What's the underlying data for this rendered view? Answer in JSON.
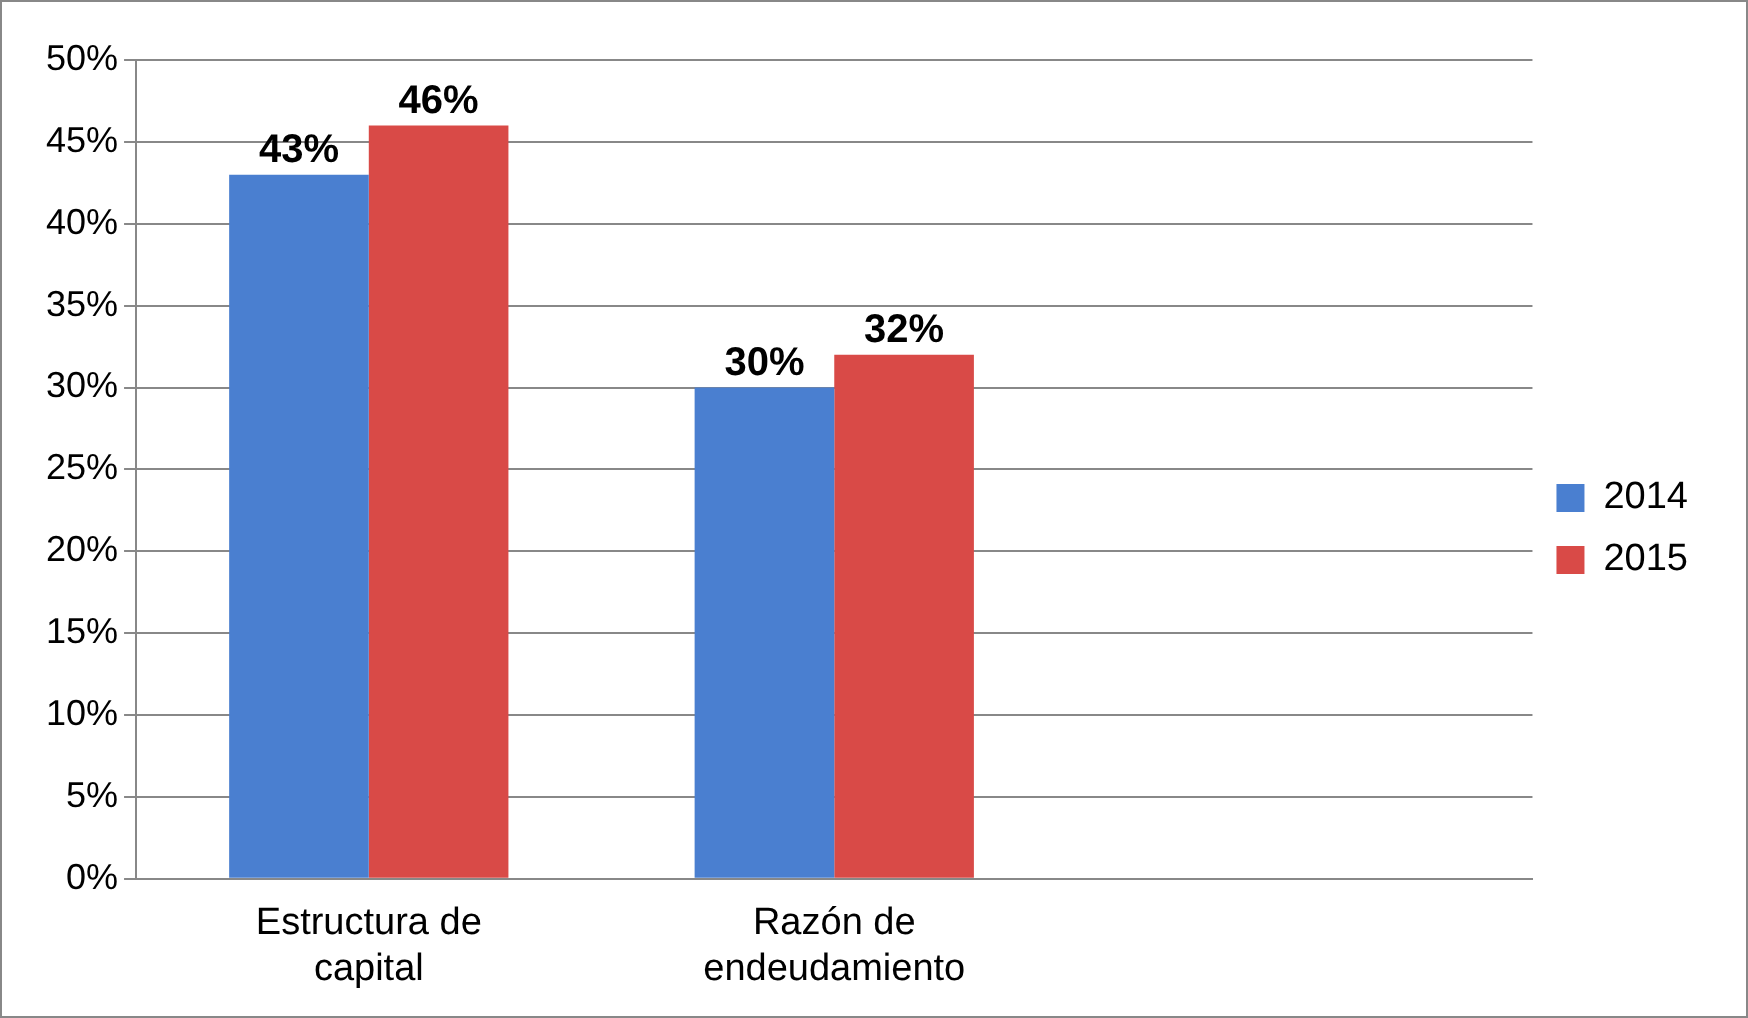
{
  "chart_data": {
    "type": "bar",
    "categories": [
      "Estructura de capital",
      "Razón de endeudamiento",
      null
    ],
    "series": [
      {
        "name": "2014",
        "color": "#4a7fd0",
        "values": [
          43,
          30,
          null
        ],
        "value_labels": [
          "43%",
          "30%",
          null
        ]
      },
      {
        "name": "2015",
        "color": "#d94a47",
        "values": [
          46,
          32,
          null
        ],
        "value_labels": [
          "46%",
          "32%",
          null
        ]
      }
    ],
    "ylim": [
      0,
      50
    ],
    "yticks": [
      {
        "value": 0,
        "label": "0%"
      },
      {
        "value": 5,
        "label": "5%"
      },
      {
        "value": 10,
        "label": "10%"
      },
      {
        "value": 15,
        "label": "15%"
      },
      {
        "value": 20,
        "label": "20%"
      },
      {
        "value": 25,
        "label": "25%"
      },
      {
        "value": 30,
        "label": "30%"
      },
      {
        "value": 35,
        "label": "35%"
      },
      {
        "value": 40,
        "label": "40%"
      },
      {
        "value": 45,
        "label": "45%"
      },
      {
        "value": 50,
        "label": "50%"
      }
    ],
    "grid": "y",
    "legend": "right"
  }
}
